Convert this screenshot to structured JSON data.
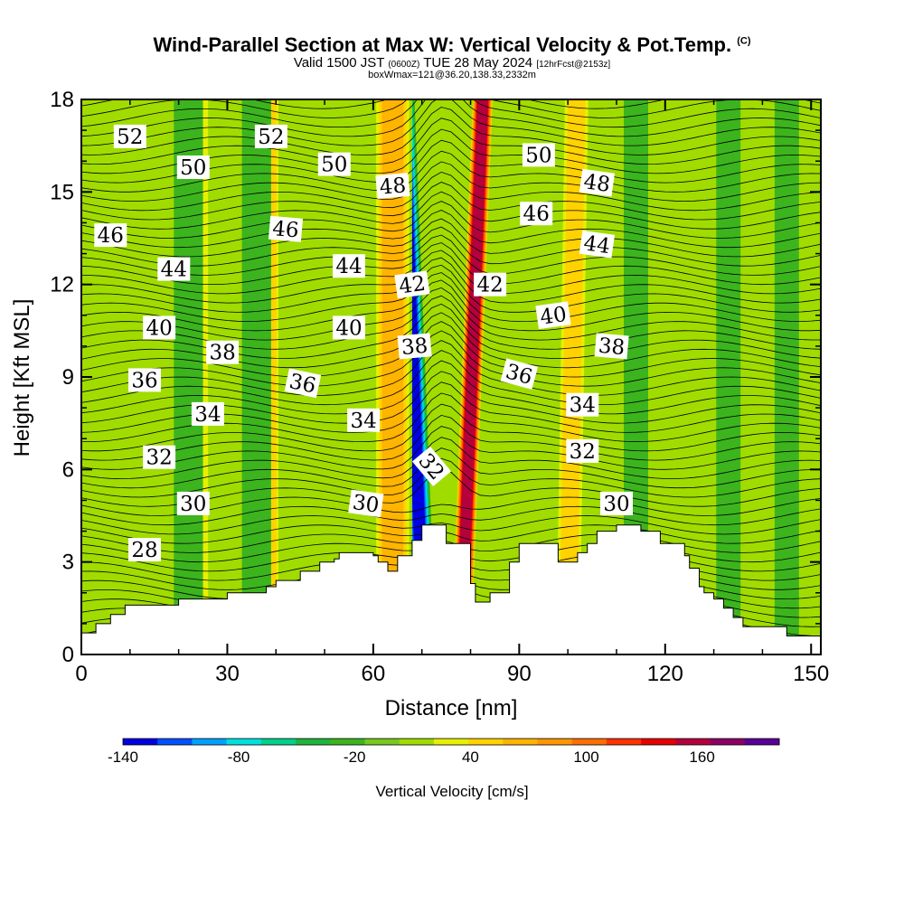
{
  "header": {
    "title": "Wind-Parallel Section at Max W: Vertical Velocity & Pot.Temp.",
    "copyright": "(C)",
    "valid_prefix": "Valid 1500 JST",
    "valid_utc": "(0600Z)",
    "valid_date": "TUE 28 May 2024",
    "forecast": "[12hrFcst@2153z]",
    "box_info": "boxWmax=121@36.20,138.33,2332m"
  },
  "chart_data": {
    "type": "heatmap",
    "xlabel": "Distance [nm]",
    "ylabel": "Height [Kft MSL]",
    "xlim": [
      0,
      152
    ],
    "ylim": [
      0,
      18
    ],
    "x_ticks": [
      0,
      30,
      60,
      90,
      120,
      150
    ],
    "x_tick_labels": [
      "0",
      "30",
      "60",
      "90",
      "120",
      "150"
    ],
    "y_ticks": [
      0,
      3,
      6,
      9,
      12,
      15,
      18
    ],
    "y_tick_labels": [
      "0",
      "3",
      "6",
      "9",
      "12",
      "15",
      "18"
    ],
    "colorbar": {
      "label": "Vertical Velocity [cm/s]",
      "range": [
        -140,
        200
      ],
      "tick_values": [
        -140,
        -80,
        -20,
        40,
        100,
        160
      ],
      "tick_labels": [
        "-140",
        "-80",
        "-20",
        "40",
        "100",
        "160"
      ],
      "colors": [
        "#0000e0",
        "#0050ff",
        "#00a0ff",
        "#00e0e0",
        "#00d08c",
        "#1eb43c",
        "#3cb41e",
        "#78c81e",
        "#a0dc00",
        "#e6f000",
        "#ffd200",
        "#ffb400",
        "#ff9600",
        "#ff6e00",
        "#ff3200",
        "#e60000",
        "#b4003c",
        "#8c0064",
        "#5a0096"
      ]
    },
    "terrain_profile": {
      "x": [
        0,
        3,
        6,
        9,
        10,
        20,
        30,
        38,
        40,
        45,
        49,
        52,
        53,
        60,
        61,
        63,
        65,
        68,
        70,
        74,
        75,
        80,
        81,
        83,
        84,
        86,
        88,
        90,
        95,
        98,
        100,
        102,
        104,
        106,
        110,
        112,
        115,
        119,
        120,
        124,
        125,
        127,
        128,
        130,
        132,
        134,
        136,
        145,
        152
      ],
      "h": [
        0.7,
        1.0,
        1.3,
        1.6,
        1.6,
        1.8,
        2.0,
        2.2,
        2.4,
        2.7,
        3.0,
        3.1,
        3.3,
        3.2,
        3.0,
        2.7,
        3.2,
        3.7,
        4.2,
        4.2,
        3.6,
        2.3,
        1.7,
        1.7,
        2.0,
        2.0,
        3.0,
        3.6,
        3.6,
        3.0,
        3.0,
        3.3,
        3.6,
        4.0,
        4.2,
        4.2,
        4.0,
        3.6,
        3.6,
        3.2,
        2.8,
        2.2,
        2.0,
        1.8,
        1.5,
        1.2,
        0.9,
        0.6,
        0.5
      ]
    },
    "velocity_bands": [
      {
        "x_center": 70.5,
        "half_width": 2.5,
        "value": -140,
        "tilt": -0.25
      },
      {
        "x_center": 78.0,
        "half_width": 2.2,
        "value": 160,
        "tilt": 0.25
      },
      {
        "x_center": 64.0,
        "half_width": 4.0,
        "value": 70,
        "tilt": 0.0
      },
      {
        "x_center": 100.0,
        "half_width": 3.0,
        "value": 55,
        "tilt": 0.1
      },
      {
        "x_center": 39.0,
        "half_width": 1.5,
        "value": 45,
        "tilt": 0.0
      },
      {
        "x_center": 25.0,
        "half_width": 1.5,
        "value": 35,
        "tilt": 0.0
      },
      {
        "x_center": 22.0,
        "half_width": 3.0,
        "value": -20,
        "tilt": 0.0
      },
      {
        "x_center": 36.0,
        "half_width": 3.0,
        "value": -20,
        "tilt": 0.0
      },
      {
        "x_center": 114.0,
        "half_width": 2.5,
        "value": -20,
        "tilt": 0.0
      },
      {
        "x_center": 145.0,
        "half_width": 2.5,
        "value": -20,
        "tilt": 0.0
      },
      {
        "x_center": 133.0,
        "half_width": 2.5,
        "value": -20,
        "tilt": 0.0
      }
    ],
    "theta_contour_labels": [
      {
        "value": "52",
        "x": 10,
        "z": 16.8,
        "rot": 0
      },
      {
        "value": "52",
        "x": 39,
        "z": 16.8,
        "rot": 0
      },
      {
        "value": "50",
        "x": 23,
        "z": 15.8,
        "rot": 0
      },
      {
        "value": "50",
        "x": 52,
        "z": 15.9,
        "rot": 0
      },
      {
        "value": "48",
        "x": 64,
        "z": 15.2,
        "rot": -5
      },
      {
        "value": "50",
        "x": 94,
        "z": 16.2,
        "rot": 0
      },
      {
        "value": "48",
        "x": 106,
        "z": 15.3,
        "rot": 8
      },
      {
        "value": "46",
        "x": 6,
        "z": 13.6,
        "rot": 0
      },
      {
        "value": "46",
        "x": 42,
        "z": 13.8,
        "rot": 5
      },
      {
        "value": "46",
        "x": 93.5,
        "z": 14.3,
        "rot": 0
      },
      {
        "value": "44",
        "x": 19,
        "z": 12.5,
        "rot": 0
      },
      {
        "value": "44",
        "x": 55,
        "z": 12.6,
        "rot": 0
      },
      {
        "value": "44",
        "x": 106,
        "z": 13.3,
        "rot": 8
      },
      {
        "value": "42",
        "x": 68,
        "z": 12.0,
        "rot": -8
      },
      {
        "value": "42",
        "x": 84,
        "z": 12.0,
        "rot": 0
      },
      {
        "value": "40",
        "x": 16,
        "z": 10.6,
        "rot": 0
      },
      {
        "value": "40",
        "x": 55,
        "z": 10.6,
        "rot": 0
      },
      {
        "value": "40",
        "x": 97,
        "z": 11.0,
        "rot": -8
      },
      {
        "value": "38",
        "x": 29,
        "z": 9.8,
        "rot": 0
      },
      {
        "value": "38",
        "x": 68.5,
        "z": 10.0,
        "rot": -5
      },
      {
        "value": "38",
        "x": 109,
        "z": 10.0,
        "rot": 5
      },
      {
        "value": "36",
        "x": 13,
        "z": 8.9,
        "rot": 0
      },
      {
        "value": "36",
        "x": 45.5,
        "z": 8.8,
        "rot": 12
      },
      {
        "value": "36",
        "x": 90,
        "z": 9.1,
        "rot": 15
      },
      {
        "value": "34",
        "x": 26,
        "z": 7.8,
        "rot": 0
      },
      {
        "value": "34",
        "x": 58,
        "z": 7.6,
        "rot": 0
      },
      {
        "value": "34",
        "x": 103,
        "z": 8.1,
        "rot": 0
      },
      {
        "value": "32",
        "x": 16,
        "z": 6.4,
        "rot": 0
      },
      {
        "value": "32",
        "x": 72,
        "z": 6.1,
        "rot": 50
      },
      {
        "value": "32",
        "x": 103,
        "z": 6.6,
        "rot": 0
      },
      {
        "value": "30",
        "x": 23,
        "z": 4.9,
        "rot": 0
      },
      {
        "value": "30",
        "x": 58.5,
        "z": 4.9,
        "rot": 8
      },
      {
        "value": "30",
        "x": 110,
        "z": 4.9,
        "rot": 0
      },
      {
        "value": "28",
        "x": 13,
        "z": 3.4,
        "rot": 0
      }
    ]
  }
}
